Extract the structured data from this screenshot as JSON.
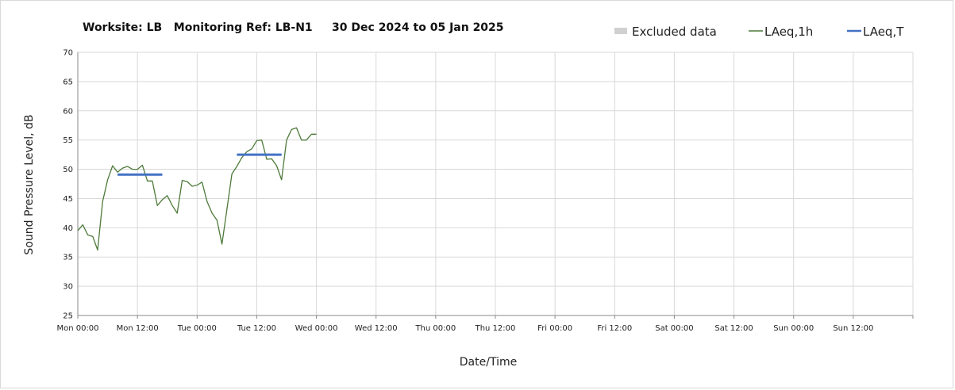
{
  "chart_data": {
    "type": "line",
    "title": "Worksite: LB   Monitoring Ref: LB-N1     30 Dec 2024 to 05 Jan 2025",
    "xlabel": "Date/Time",
    "ylabel": "Sound Pressure Level, dB",
    "ylim": [
      25,
      70
    ],
    "yticks": [
      25,
      30,
      35,
      40,
      45,
      50,
      55,
      60,
      65,
      70
    ],
    "xlim_hours": [
      0,
      168
    ],
    "xticks": [
      "Mon 00:00",
      "Mon 12:00",
      "Tue 00:00",
      "Tue 12:00",
      "Wed 00:00",
      "Wed 12:00",
      "Thu 00:00",
      "Thu 12:00",
      "Fri 00:00",
      "Fri 12:00",
      "Sat 00:00",
      "Sat 12:00",
      "Sun 00:00",
      "Sun 12:00"
    ],
    "grid": true,
    "legend": {
      "position": "top-right",
      "entries": [
        {
          "label": "Excluded data",
          "color": "#d0d0d0",
          "kind": "box"
        },
        {
          "label": "LAeq,1h",
          "color": "#4e7a3b",
          "kind": "line"
        },
        {
          "label": "LAeq,T",
          "color": "#4472c4",
          "kind": "line"
        }
      ]
    },
    "series": [
      {
        "name": "LAeq,1h",
        "color": "#4e7a3b",
        "x": [
          0,
          1,
          2,
          3,
          4,
          5,
          6,
          7,
          8,
          9,
          10,
          11,
          12,
          13,
          14,
          15,
          16,
          17,
          18,
          19,
          20,
          21,
          22,
          23,
          24,
          25,
          26,
          27,
          28,
          29,
          30,
          31,
          32,
          33,
          34,
          35,
          36,
          37,
          38,
          39,
          40,
          41,
          42,
          43,
          44,
          45,
          46,
          47,
          48
        ],
        "y": [
          39.5,
          40.5,
          38.8,
          38.5,
          36.2,
          44.5,
          48.2,
          50.6,
          49.5,
          50.2,
          50.5,
          50.0,
          50.0,
          50.7,
          48.0,
          48.0,
          43.8,
          44.8,
          45.5,
          43.8,
          42.5,
          48.1,
          47.9,
          47.1,
          47.3,
          47.8,
          44.5,
          42.5,
          41.3,
          37.2,
          43.2,
          49.2,
          50.5,
          52.0,
          53.0,
          53.5,
          54.9,
          55.0,
          51.7,
          51.8,
          50.6,
          48.2,
          55.0,
          56.8,
          57.1,
          55.0,
          55.0,
          56.0,
          56.0
        ]
      },
      {
        "name": "LAeq,T",
        "color": "#4472c4",
        "segments": [
          {
            "x": [
              8,
              17
            ],
            "y": 49.1
          },
          {
            "x": [
              32,
              41
            ],
            "y": 52.5
          }
        ]
      }
    ]
  }
}
